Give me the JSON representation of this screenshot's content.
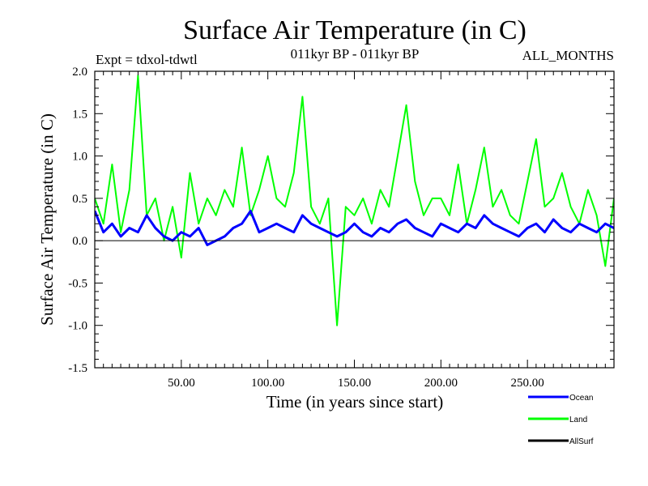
{
  "chart_data": {
    "type": "line",
    "title": "Surface Air Temperature (in C)",
    "experiment": "Expt = tdxol-tdwtl",
    "period": "011kyr BP - 011kyr BP",
    "season": "ALL_MONTHS",
    "xlabel": "Time (in years since start)",
    "ylabel": "Surface Air Temperature (in C)",
    "xlim": [
      0,
      300
    ],
    "ylim": [
      -1.5,
      2.0
    ],
    "x_ticks": [
      50,
      100,
      150,
      200,
      250
    ],
    "x_tick_labels": [
      "50.00",
      "100.00",
      "150.00",
      "200.00",
      "250.00"
    ],
    "y_ticks": [
      -1.5,
      -1.0,
      -0.5,
      0.0,
      0.5,
      1.0,
      1.5,
      2.0
    ],
    "y_tick_labels": [
      "-1.5",
      "-1.0",
      "-0.5",
      "0.0",
      "0.5",
      "1.0",
      "1.5",
      "2.0"
    ],
    "zero_line": true,
    "legend_position": "bottom-right",
    "colors": {
      "Ocean": "#0000ff",
      "Land": "#00ff00",
      "AllSurf": "#000000"
    },
    "series": [
      {
        "name": "Ocean",
        "color": "#0000ff",
        "x": [
          0,
          5,
          10,
          15,
          20,
          25,
          30,
          35,
          40,
          45,
          50,
          55,
          60,
          65,
          70,
          75,
          80,
          85,
          90,
          95,
          100,
          105,
          110,
          115,
          120,
          125,
          130,
          135,
          140,
          145,
          150,
          155,
          160,
          165,
          170,
          175,
          180,
          185,
          190,
          195,
          200,
          205,
          210,
          215,
          220,
          225,
          230,
          235,
          240,
          245,
          250,
          255,
          260,
          265,
          270,
          275,
          280,
          285,
          290,
          295,
          300
        ],
        "values": [
          0.35,
          0.1,
          0.2,
          0.05,
          0.15,
          0.1,
          0.3,
          0.15,
          0.05,
          0.0,
          0.1,
          0.05,
          0.15,
          -0.05,
          0.0,
          0.05,
          0.15,
          0.2,
          0.35,
          0.1,
          0.15,
          0.2,
          0.15,
          0.1,
          0.3,
          0.2,
          0.15,
          0.1,
          0.05,
          0.1,
          0.2,
          0.1,
          0.05,
          0.15,
          0.1,
          0.2,
          0.25,
          0.15,
          0.1,
          0.05,
          0.2,
          0.15,
          0.1,
          0.2,
          0.15,
          0.3,
          0.2,
          0.15,
          0.1,
          0.05,
          0.15,
          0.2,
          0.1,
          0.25,
          0.15,
          0.1,
          0.2,
          0.15,
          0.1,
          0.2,
          0.15
        ]
      },
      {
        "name": "Land",
        "color": "#00ff00",
        "x": [
          0,
          5,
          10,
          15,
          20,
          25,
          30,
          35,
          40,
          45,
          50,
          55,
          60,
          65,
          70,
          75,
          80,
          85,
          90,
          95,
          100,
          105,
          110,
          115,
          120,
          125,
          130,
          135,
          140,
          145,
          150,
          155,
          160,
          165,
          170,
          175,
          180,
          185,
          190,
          195,
          200,
          205,
          210,
          215,
          220,
          225,
          230,
          235,
          240,
          245,
          250,
          255,
          260,
          265,
          270,
          275,
          280,
          285,
          290,
          295,
          300
        ],
        "values": [
          0.5,
          0.2,
          0.9,
          0.1,
          0.6,
          1.95,
          0.3,
          0.5,
          0.0,
          0.4,
          -0.2,
          0.8,
          0.2,
          0.5,
          0.3,
          0.6,
          0.4,
          1.1,
          0.3,
          0.6,
          1.0,
          0.5,
          0.4,
          0.8,
          1.7,
          0.4,
          0.2,
          0.5,
          -1.0,
          0.4,
          0.3,
          0.5,
          0.2,
          0.6,
          0.4,
          1.0,
          1.6,
          0.7,
          0.3,
          0.5,
          0.5,
          0.3,
          0.9,
          0.2,
          0.6,
          1.1,
          0.4,
          0.6,
          0.3,
          0.2,
          0.7,
          1.2,
          0.4,
          0.5,
          0.8,
          0.4,
          0.2,
          0.6,
          0.3,
          -0.3,
          0.5
        ]
      },
      {
        "name": "AllSurf",
        "color": "#000000",
        "x": [],
        "values": []
      }
    ]
  }
}
